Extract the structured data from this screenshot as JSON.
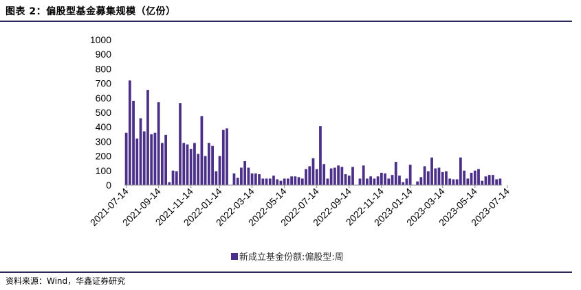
{
  "header": {
    "title": "图表 2：偏股型基金募集规模（亿份）"
  },
  "footer": {
    "source": "资料来源：Wind，华鑫证券研究"
  },
  "colors": {
    "bar": "#4b2f88",
    "rule": "#2a2a5e"
  },
  "chart_data": {
    "type": "bar",
    "title": "",
    "xlabel": "",
    "ylabel": "",
    "ylim": [
      0,
      1000
    ],
    "y_ticks": [
      "0",
      "100",
      "200",
      "300",
      "400",
      "500",
      "600",
      "700",
      "800",
      "900",
      "1000"
    ],
    "x_tick_labels": [
      "2021-07-14",
      "2021-09-14",
      "2021-11-14",
      "2022-01-14",
      "2022-03-14",
      "2022-05-14",
      "2022-07-14",
      "2022-09-14",
      "2022-11-14",
      "2023-01-14",
      "2023-03-14",
      "2023-05-14",
      "2023-07-14"
    ],
    "x_tick_indices": [
      0,
      9,
      18,
      26,
      35,
      44,
      53,
      62,
      71,
      79,
      88,
      97,
      106
    ],
    "series": [
      {
        "name": "新成立基金份额:偏股型:周",
        "values": [
          360,
          720,
          580,
          320,
          460,
          370,
          655,
          350,
          360,
          570,
          290,
          345,
          20,
          100,
          95,
          565,
          290,
          280,
          250,
          290,
          215,
          475,
          200,
          290,
          270,
          95,
          200,
          380,
          390,
          0,
          80,
          50,
          120,
          165,
          120,
          80,
          80,
          75,
          45,
          45,
          45,
          65,
          40,
          30,
          45,
          45,
          60,
          60,
          55,
          45,
          110,
          130,
          185,
          110,
          405,
          145,
          45,
          115,
          120,
          135,
          125,
          75,
          65,
          125,
          0,
          45,
          135,
          45,
          60,
          45,
          60,
          85,
          80,
          45,
          70,
          160,
          65,
          20,
          45,
          140,
          0,
          25,
          55,
          130,
          95,
          190,
          115,
          120,
          90,
          95,
          45,
          40,
          40,
          190,
          100,
          45,
          85,
          100,
          110,
          30,
          60,
          70,
          70,
          40,
          45
        ]
      }
    ],
    "legend": {
      "position": "bottom",
      "label": "新成立基金份额:偏股型:周"
    }
  }
}
